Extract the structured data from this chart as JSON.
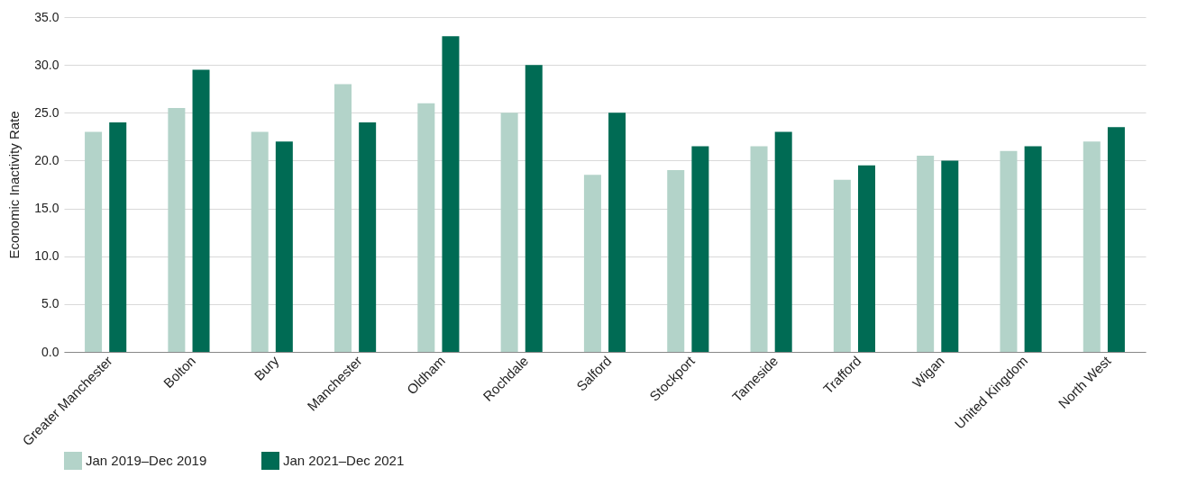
{
  "chart_data": {
    "type": "bar",
    "ylabel": "Economic Inactivity Rate",
    "categories": [
      "Greater Manchester",
      "Bolton",
      "Bury",
      "Manchester",
      "Oldham",
      "Rochdale",
      "Salford",
      "Stockport",
      "Tameside",
      "Trafford",
      "Wigan",
      "United Kingdom",
      "North West"
    ],
    "series": [
      {
        "name": "Jan 2019–Dec 2019",
        "color": "#b3d3c9",
        "values": [
          23,
          25.5,
          23,
          28,
          26,
          25,
          18.5,
          19,
          21.5,
          18,
          20.5,
          21,
          22
        ]
      },
      {
        "name": "Jan 2021–Dec 2021",
        "color": "#006b54",
        "values": [
          24,
          29.5,
          22,
          24,
          33,
          30,
          25,
          21.5,
          23,
          19.5,
          20,
          21.5,
          23.5
        ]
      }
    ],
    "ylim": [
      0,
      35
    ],
    "yticks": [
      {
        "value": 0,
        "label": "0.0"
      },
      {
        "value": 5,
        "label": "5.0"
      },
      {
        "value": 10,
        "label": "10.0"
      },
      {
        "value": 15,
        "label": "15.0"
      },
      {
        "value": 20,
        "label": "20.0"
      },
      {
        "value": 25,
        "label": "25.0"
      },
      {
        "value": 30,
        "label": "30.0"
      },
      {
        "value": 35,
        "label": "35.0"
      }
    ],
    "grid": "y",
    "legend": "bottom"
  }
}
